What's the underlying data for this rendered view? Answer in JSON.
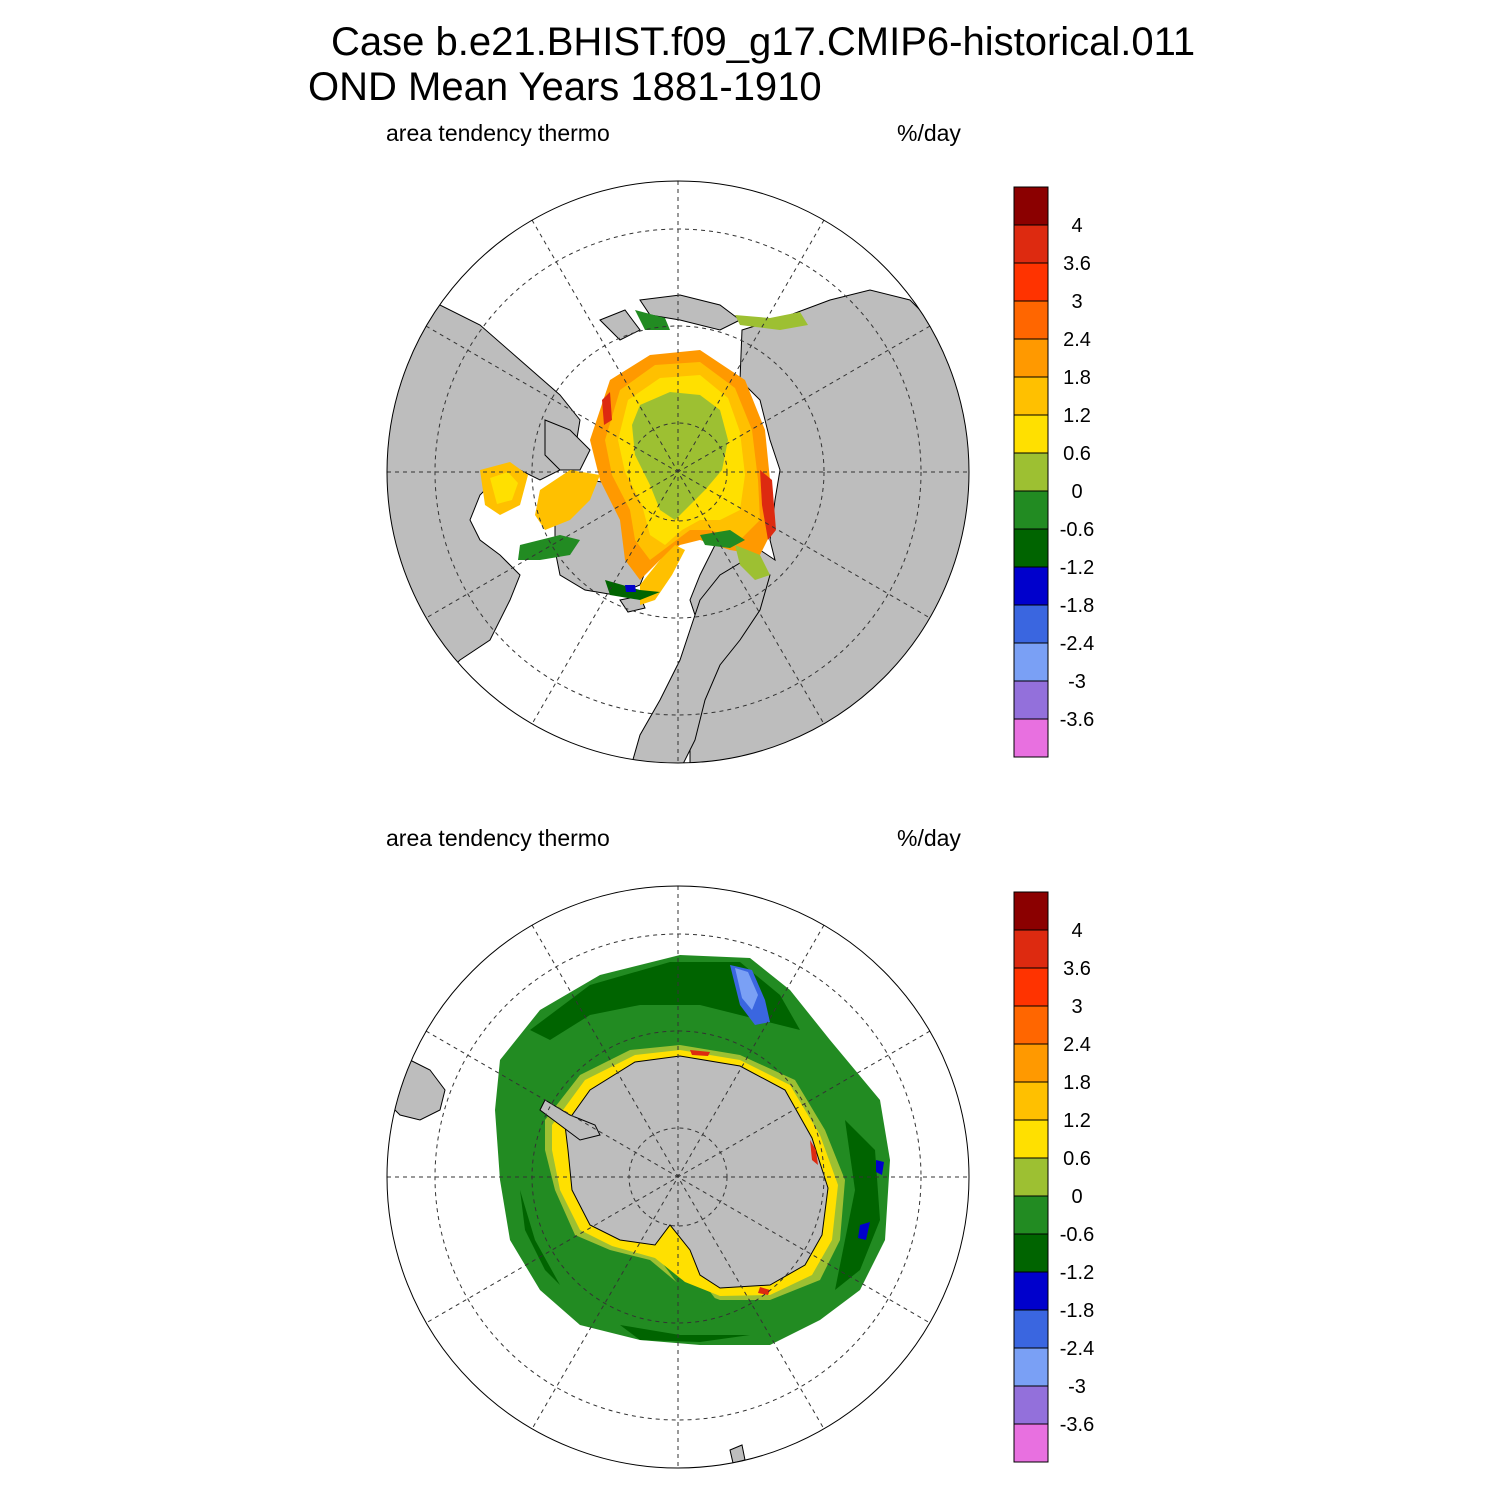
{
  "title": {
    "line1": "Case b.e21.BHIST.f09_g17.CMIP6-historical.011",
    "line2": "OND Mean   Years 1881-1910"
  },
  "panels": [
    {
      "id": "north",
      "hemisphere": "Arctic (north polar stereographic)",
      "variable_label": "area tendency thermo",
      "units_label": "%/day"
    },
    {
      "id": "south",
      "hemisphere": "Antarctic (south polar stereographic)",
      "variable_label": "area tendency thermo",
      "units_label": "%/day"
    }
  ],
  "colorbar": {
    "labels": [
      "4",
      "3.6",
      "3",
      "2.4",
      "1.8",
      "1.2",
      "0.6",
      "0",
      "-0.6",
      "-1.2",
      "-1.8",
      "-2.4",
      "-3",
      "-3.6"
    ],
    "colors": [
      "#8b0000",
      "#dd2a10",
      "#ff3300",
      "#ff6600",
      "#ff9900",
      "#ffc000",
      "#ffe000",
      "#9dc032",
      "#228b22",
      "#006400",
      "#0000cc",
      "#3a66e0",
      "#7aa0f5",
      "#9370db",
      "#e870e0"
    ]
  },
  "map_colors": {
    "land": "#bdbdbd",
    "ocean_no_ice": "#ffffff",
    "coast": "#000000"
  }
}
